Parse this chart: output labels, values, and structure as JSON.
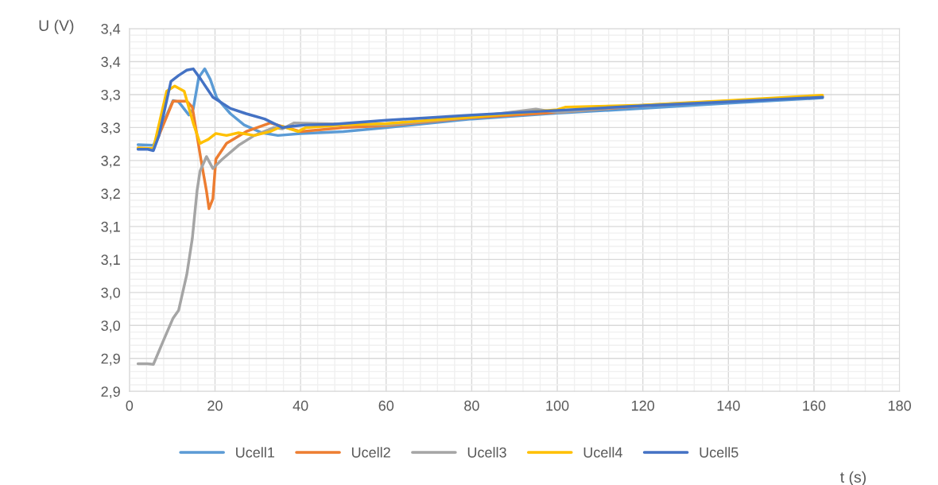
{
  "chart_data": {
    "type": "line",
    "xlabel": "t (s)",
    "ylabel": "U (V)",
    "xlim": [
      0,
      180
    ],
    "xticks": [
      0,
      20,
      40,
      60,
      80,
      100,
      120,
      140,
      160,
      180
    ],
    "ylim": [
      2.85,
      3.4
    ],
    "yticks": [
      {
        "value": 2.85,
        "label": "2,9"
      },
      {
        "value": 2.9,
        "label": "2,9"
      },
      {
        "value": 2.95,
        "label": "3,0"
      },
      {
        "value": 3.0,
        "label": "3,0"
      },
      {
        "value": 3.05,
        "label": "3,1"
      },
      {
        "value": 3.1,
        "label": "3,1"
      },
      {
        "value": 3.15,
        "label": "3,2"
      },
      {
        "value": 3.2,
        "label": "3,2"
      },
      {
        "value": 3.25,
        "label": "3,3"
      },
      {
        "value": 3.3,
        "label": "3,3"
      },
      {
        "value": 3.35,
        "label": "3,4"
      },
      {
        "value": 3.4,
        "label": "3,4"
      }
    ],
    "grid": true,
    "legend": "bottom",
    "marker": "none",
    "line_style": "solid",
    "series": [
      {
        "name": "Ucell1",
        "color": "#5b9bd5",
        "x": [
          2,
          5.6,
          10.2,
          11.5,
          13.9,
          14.9,
          16.2,
          17.6,
          18.9,
          20.4,
          23.6,
          26.8,
          31,
          34.7,
          40,
          50,
          60,
          80,
          100,
          120,
          140,
          162
        ],
        "values": [
          3.224,
          3.223,
          3.291,
          3.289,
          3.269,
          3.278,
          3.326,
          3.339,
          3.323,
          3.295,
          3.271,
          3.254,
          3.242,
          3.238,
          3.241,
          3.244,
          3.25,
          3.263,
          3.272,
          3.279,
          3.287,
          3.295
        ]
      },
      {
        "name": "Ucell2",
        "color": "#ed7d31",
        "x": [
          2,
          5.6,
          10.2,
          13.4,
          14.7,
          16.7,
          18,
          18.6,
          19.5,
          20.2,
          22.7,
          27.3,
          32.9,
          40,
          50,
          60,
          80,
          100,
          120,
          140,
          162
        ],
        "values": [
          3.219,
          3.218,
          3.29,
          3.29,
          3.281,
          3.202,
          3.154,
          3.127,
          3.142,
          3.202,
          3.226,
          3.244,
          3.257,
          3.244,
          3.25,
          3.253,
          3.265,
          3.273,
          3.283,
          3.29,
          3.297
        ]
      },
      {
        "name": "Ucell3",
        "color": "#a5a5a5",
        "x": [
          2,
          4.2,
          5.6,
          7.8,
          10.2,
          11.5,
          13.4,
          14.7,
          15.8,
          16.5,
          18,
          19.5,
          21.7,
          25.5,
          29.2,
          33.8,
          35.7,
          38.5,
          45,
          60,
          80,
          95,
          100,
          120,
          140,
          162
        ],
        "values": [
          2.892,
          2.892,
          2.891,
          2.925,
          2.961,
          2.973,
          3.027,
          3.082,
          3.154,
          3.184,
          3.206,
          3.188,
          3.202,
          3.223,
          3.238,
          3.25,
          3.248,
          3.257,
          3.256,
          3.254,
          3.266,
          3.278,
          3.273,
          3.284,
          3.29,
          3.297
        ]
      },
      {
        "name": "Ucell4",
        "color": "#ffc000",
        "x": [
          2,
          5.6,
          8.7,
          10.6,
          12.8,
          14.9,
          16.5,
          18.4,
          20.2,
          22.7,
          25.5,
          29.2,
          32.9,
          35.7,
          37.5,
          39.4,
          41.2,
          50,
          60,
          80,
          100,
          102,
          120,
          140,
          162
        ],
        "values": [
          3.219,
          3.218,
          3.305,
          3.313,
          3.305,
          3.257,
          3.226,
          3.232,
          3.241,
          3.238,
          3.242,
          3.238,
          3.244,
          3.252,
          3.248,
          3.244,
          3.25,
          3.254,
          3.256,
          3.266,
          3.277,
          3.281,
          3.284,
          3.291,
          3.299
        ]
      },
      {
        "name": "Ucell5",
        "color": "#4472c4",
        "x": [
          2,
          4.3,
          5.6,
          6.9,
          9.7,
          11.5,
          13.4,
          14.9,
          16.7,
          19.5,
          23.6,
          27.3,
          31.6,
          35.7,
          38.1,
          41.2,
          47.7,
          60,
          80,
          100,
          120,
          140,
          162
        ],
        "values": [
          3.217,
          3.217,
          3.215,
          3.238,
          3.32,
          3.329,
          3.337,
          3.339,
          3.323,
          3.296,
          3.279,
          3.271,
          3.263,
          3.25,
          3.252,
          3.254,
          3.255,
          3.261,
          3.269,
          3.276,
          3.283,
          3.289,
          3.296
        ]
      }
    ]
  }
}
